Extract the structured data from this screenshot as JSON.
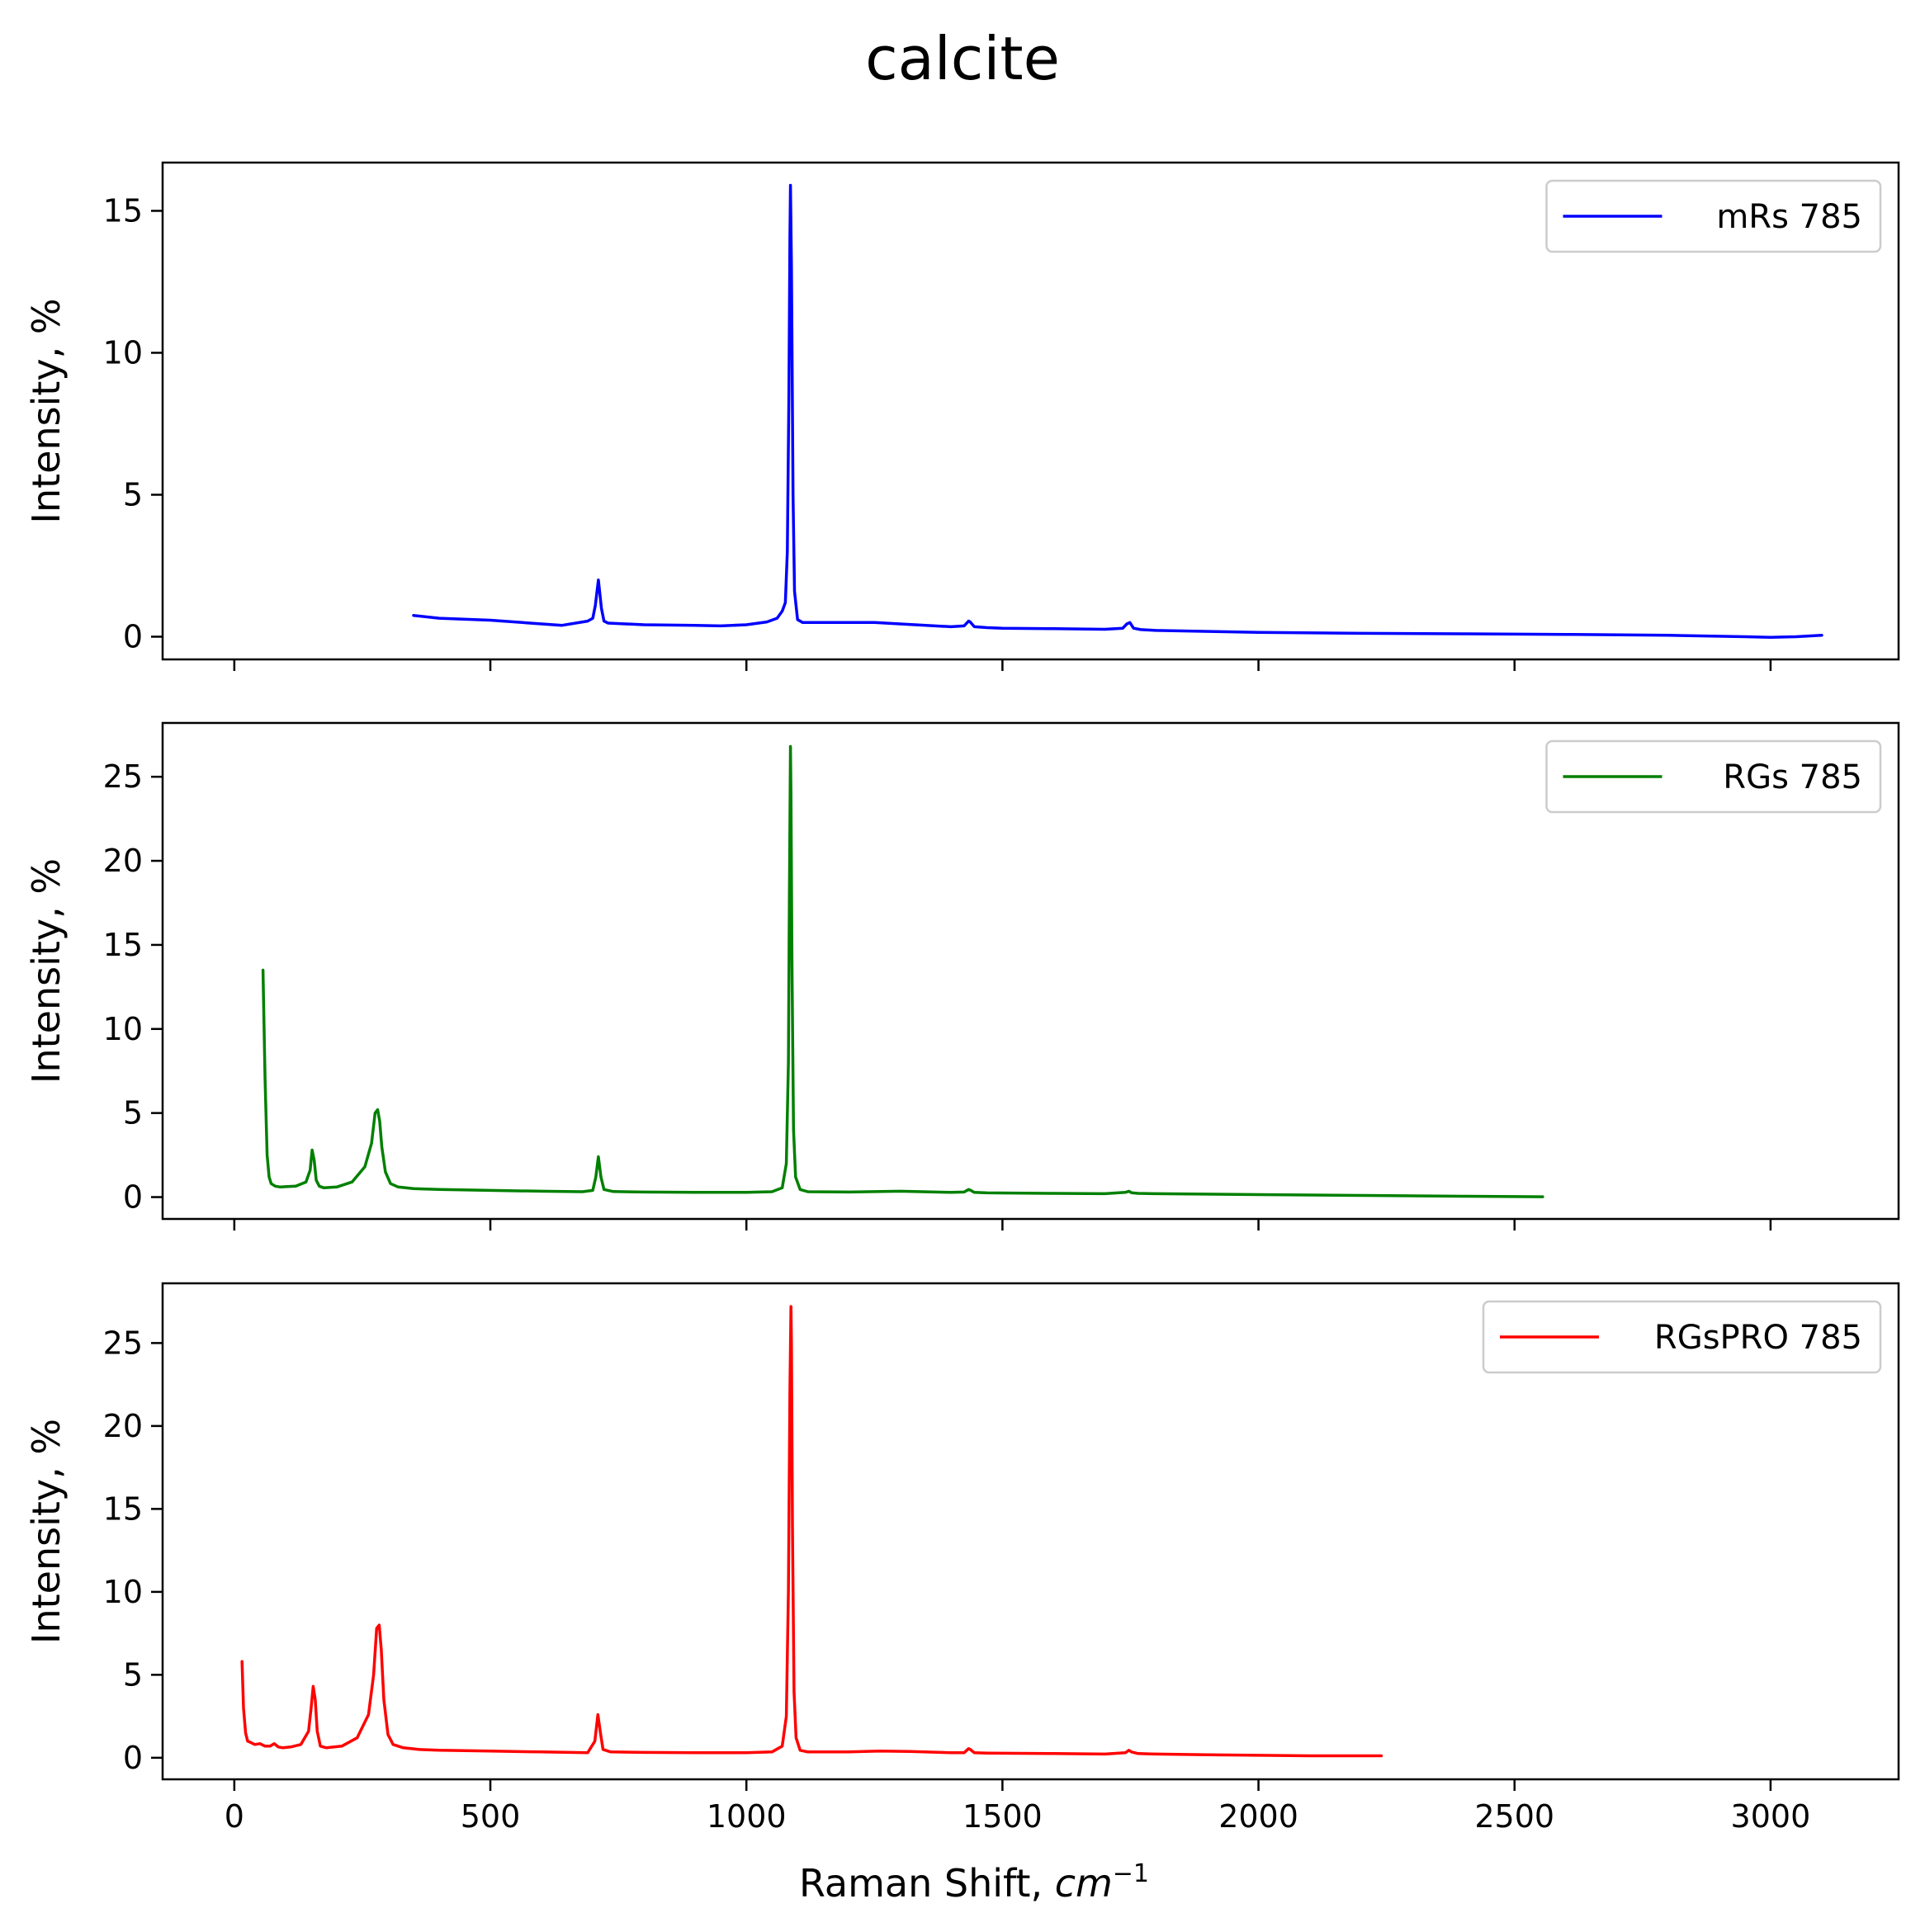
{
  "title": "calcite",
  "xlabel": "Raman Shift, cm⁻¹",
  "xlim": [
    -140,
    3250
  ],
  "xticks": [
    0,
    500,
    1000,
    1500,
    2000,
    2500,
    3000
  ],
  "chart_data": [
    {
      "type": "line",
      "ylabel": "Intensity, %",
      "ylim": [
        -0.8,
        16.7
      ],
      "yticks": [
        0,
        5,
        10,
        15
      ],
      "legend_position": "top-right",
      "series": [
        {
          "name": "mRs 785",
          "color": "#0000ff",
          "x": [
            350,
            400,
            500,
            600,
            640,
            690,
            700,
            705,
            711,
            717,
            722,
            730,
            800,
            900,
            950,
            1000,
            1040,
            1060,
            1070,
            1076,
            1080,
            1083,
            1085,
            1086,
            1088,
            1091,
            1094,
            1100,
            1110,
            1150,
            1250,
            1300,
            1400,
            1425,
            1434,
            1437,
            1445,
            1470,
            1500,
            1600,
            1700,
            1735,
            1743,
            1749,
            1756,
            1770,
            1800,
            2000,
            2200,
            2400,
            2600,
            2800,
            2950,
            3000,
            3050,
            3100
          ],
          "y": [
            0.75,
            0.65,
            0.58,
            0.45,
            0.4,
            0.55,
            0.65,
            1.1,
            2.0,
            1.0,
            0.55,
            0.48,
            0.42,
            0.4,
            0.38,
            0.42,
            0.52,
            0.65,
            0.9,
            1.2,
            3.0,
            8.5,
            14.0,
            15.9,
            13.0,
            5.0,
            1.6,
            0.6,
            0.5,
            0.5,
            0.5,
            0.45,
            0.35,
            0.38,
            0.55,
            0.52,
            0.35,
            0.32,
            0.3,
            0.28,
            0.26,
            0.3,
            0.45,
            0.5,
            0.3,
            0.25,
            0.22,
            0.15,
            0.12,
            0.1,
            0.08,
            0.05,
            0.0,
            -0.02,
            0.0,
            0.05
          ]
        }
      ]
    },
    {
      "type": "line",
      "ylabel": "Intensity, %",
      "ylim": [
        -1.3,
        28.2
      ],
      "yticks": [
        0,
        5,
        10,
        15,
        20,
        25
      ],
      "legend_position": "top-right",
      "series": [
        {
          "name": "RGs 785",
          "color": "#008000",
          "x": [
            56,
            60,
            64,
            68,
            72,
            80,
            90,
            100,
            120,
            140,
            148,
            152,
            156,
            160,
            166,
            175,
            200,
            230,
            255,
            268,
            275,
            280,
            284,
            288,
            295,
            305,
            320,
            350,
            400,
            500,
            600,
            680,
            700,
            706,
            711,
            716,
            722,
            740,
            800,
            900,
            1000,
            1050,
            1070,
            1078,
            1082,
            1084,
            1086,
            1087,
            1089,
            1092,
            1096,
            1105,
            1120,
            1200,
            1300,
            1400,
            1425,
            1434,
            1437,
            1445,
            1470,
            1600,
            1700,
            1740,
            1747,
            1752,
            1765,
            1800,
            2000,
            2200,
            2400,
            2555
          ],
          "y": [
            13.5,
            7.0,
            2.5,
            1.2,
            0.8,
            0.65,
            0.6,
            0.62,
            0.65,
            0.9,
            1.6,
            2.8,
            2.2,
            1.0,
            0.65,
            0.55,
            0.6,
            0.9,
            1.8,
            3.2,
            5.0,
            5.2,
            4.5,
            3.0,
            1.5,
            0.8,
            0.6,
            0.5,
            0.45,
            0.4,
            0.35,
            0.32,
            0.4,
            1.2,
            2.4,
            1.2,
            0.45,
            0.33,
            0.3,
            0.28,
            0.28,
            0.32,
            0.55,
            2.0,
            8.0,
            18.0,
            26.8,
            24.0,
            14.0,
            4.0,
            1.2,
            0.45,
            0.32,
            0.3,
            0.35,
            0.28,
            0.3,
            0.45,
            0.42,
            0.28,
            0.25,
            0.22,
            0.2,
            0.28,
            0.35,
            0.26,
            0.22,
            0.2,
            0.15,
            0.1,
            0.05,
            0.02
          ]
        }
      ]
    },
    {
      "type": "line",
      "ylabel": "Intensity, %",
      "ylim": [
        -1.3,
        28.6
      ],
      "yticks": [
        0,
        5,
        10,
        15,
        20,
        25
      ],
      "legend_position": "top-right",
      "series": [
        {
          "name": "RGsPRO 785",
          "color": "#ff0000",
          "x": [
            15,
            18,
            22,
            26,
            30,
            40,
            50,
            60,
            70,
            78,
            86,
            95,
            110,
            130,
            145,
            150,
            154,
            158,
            162,
            168,
            180,
            210,
            240,
            262,
            272,
            278,
            283,
            287,
            292,
            300,
            310,
            330,
            360,
            400,
            500,
            600,
            690,
            704,
            710,
            715,
            720,
            735,
            800,
            900,
            1000,
            1050,
            1070,
            1078,
            1082,
            1085,
            1087,
            1088,
            1090,
            1093,
            1097,
            1105,
            1120,
            1200,
            1260,
            1320,
            1400,
            1425,
            1434,
            1437,
            1445,
            1470,
            1600,
            1700,
            1740,
            1747,
            1752,
            1765,
            1800,
            1900,
            2000,
            2100,
            2240
          ],
          "y": [
            5.8,
            3.0,
            1.5,
            1.0,
            0.95,
            0.8,
            0.85,
            0.7,
            0.7,
            0.85,
            0.65,
            0.6,
            0.65,
            0.8,
            1.6,
            3.0,
            4.3,
            3.5,
            1.6,
            0.7,
            0.6,
            0.7,
            1.2,
            2.6,
            5.0,
            7.8,
            8.0,
            6.5,
            3.5,
            1.4,
            0.8,
            0.6,
            0.5,
            0.45,
            0.4,
            0.35,
            0.3,
            1.0,
            2.6,
            1.5,
            0.5,
            0.35,
            0.32,
            0.3,
            0.3,
            0.35,
            0.7,
            2.5,
            10.0,
            22.0,
            27.2,
            25.0,
            14.0,
            4.0,
            1.2,
            0.45,
            0.35,
            0.35,
            0.4,
            0.38,
            0.3,
            0.3,
            0.55,
            0.5,
            0.3,
            0.28,
            0.25,
            0.22,
            0.3,
            0.45,
            0.35,
            0.25,
            0.22,
            0.18,
            0.15,
            0.12,
            0.12
          ]
        }
      ]
    }
  ]
}
